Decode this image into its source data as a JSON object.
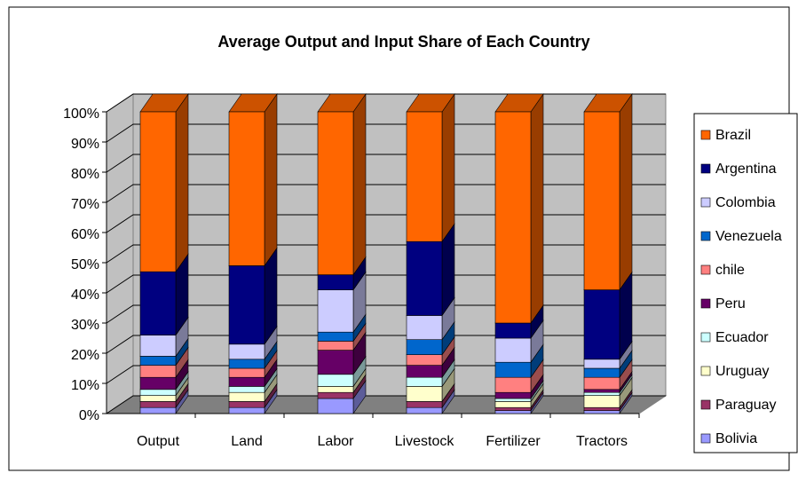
{
  "chart_data": {
    "type": "stacked-bar-3d",
    "title": "Average Output and Input Share of Each Country",
    "categories": [
      "Output",
      "Land",
      "Labor",
      "Livestock",
      "Fertilizer",
      "Tractors"
    ],
    "series": [
      {
        "name": "Bolivia",
        "color": "#9999ff",
        "values": [
          2,
          2,
          5,
          2,
          1,
          1
        ]
      },
      {
        "name": "Paraguay",
        "color": "#993366",
        "values": [
          2,
          2,
          2,
          2,
          1,
          1
        ]
      },
      {
        "name": "Uruguay",
        "color": "#ffffcc",
        "values": [
          2,
          3,
          2,
          5,
          2,
          4
        ]
      },
      {
        "name": "Ecuador",
        "color": "#ccffff",
        "values": [
          2,
          2,
          4,
          3,
          1,
          1
        ]
      },
      {
        "name": "Peru",
        "color": "#660066",
        "values": [
          4,
          3,
          8,
          4,
          2,
          1
        ]
      },
      {
        "name": "chile",
        "color": "#ff8080",
        "values": [
          4,
          3,
          3,
          3.5,
          5,
          4
        ]
      },
      {
        "name": "Venezuela",
        "color": "#0066cc",
        "values": [
          3,
          3,
          3,
          5,
          5,
          3
        ]
      },
      {
        "name": "Colombia",
        "color": "#ccccff",
        "values": [
          7,
          5,
          14,
          8,
          8,
          3
        ]
      },
      {
        "name": "Argentina",
        "color": "#000080",
        "values": [
          21,
          26,
          5,
          24.5,
          5,
          23
        ]
      },
      {
        "name": "Brazil",
        "color": "#ff6600",
        "values": [
          53,
          51,
          54,
          43,
          70,
          59
        ]
      }
    ],
    "ylim": [
      0,
      100
    ],
    "yticks": [
      {
        "value": 0,
        "label": "0%"
      },
      {
        "value": 10,
        "label": "10%"
      },
      {
        "value": 20,
        "label": "20%"
      },
      {
        "value": 30,
        "label": "30%"
      },
      {
        "value": 40,
        "label": "40%"
      },
      {
        "value": 50,
        "label": "50%"
      },
      {
        "value": 60,
        "label": "60%"
      },
      {
        "value": 70,
        "label": "70%"
      },
      {
        "value": 80,
        "label": "80%"
      },
      {
        "value": 90,
        "label": "90%"
      },
      {
        "value": 100,
        "label": "100%"
      }
    ],
    "grid": true,
    "legend": "right"
  }
}
